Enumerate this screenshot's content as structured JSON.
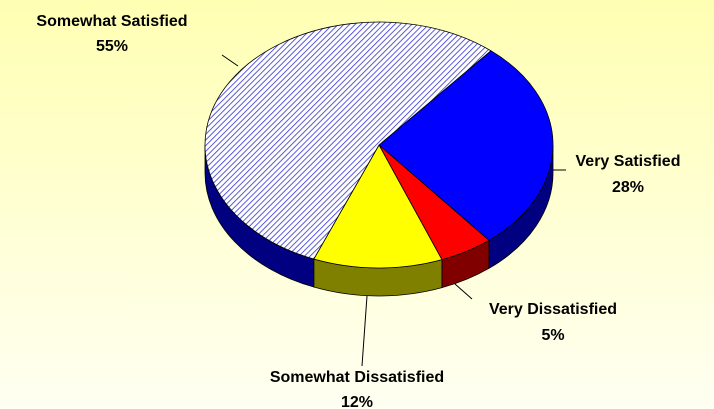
{
  "chart_data": {
    "type": "pie3d",
    "categories": [
      "Very Satisfied",
      "Very Dissatisfied",
      "Somewhat Dissatisfied",
      "Somewhat Satisfied"
    ],
    "values": [
      28,
      5,
      12,
      55
    ],
    "value_labels": [
      "28%",
      "5%",
      "12%",
      "55%"
    ],
    "colors": [
      "#0000ff",
      "#ff0000",
      "#ffff00",
      "#3333cc"
    ],
    "hatch": [
      false,
      false,
      false,
      true
    ]
  }
}
